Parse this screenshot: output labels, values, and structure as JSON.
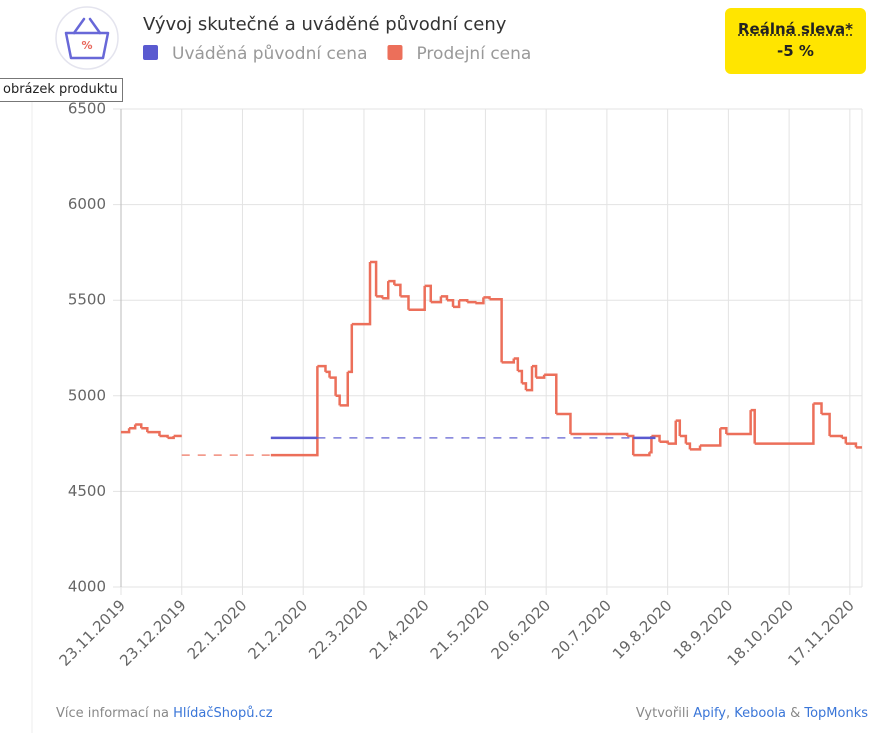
{
  "chart_data": {
    "type": "step-line",
    "title": "Vývoj skutečné a uváděné původní ceny",
    "series": [
      {
        "name": "Uváděná původní cena",
        "color": "#5a5ad0",
        "x": [
          "2020-02-05",
          "2020-02-28",
          null,
          "2020-08-02",
          "2020-08-13"
        ],
        "values": [
          4780,
          4780,
          null,
          4780,
          4780
        ]
      },
      {
        "name": "Prodejní cena",
        "color": "#ec6f5a",
        "x": [
          "2019-11-23",
          "2019-11-27",
          "2019-11-30",
          "2019-12-03",
          "2019-12-06",
          "2019-12-12",
          "2019-12-16",
          "2019-12-19",
          "2019-12-23",
          null,
          "2020-02-05",
          "2020-02-28",
          "2020-03-03",
          "2020-03-05",
          "2020-03-08",
          "2020-03-10",
          "2020-03-14",
          "2020-03-16",
          "2020-03-25",
          "2020-03-28",
          "2020-03-31",
          "2020-04-03",
          "2020-04-06",
          "2020-04-09",
          "2020-04-13",
          "2020-04-21",
          "2020-04-24",
          "2020-04-29",
          "2020-05-02",
          "2020-05-05",
          "2020-05-08",
          "2020-05-12",
          "2020-05-16",
          "2020-05-20",
          "2020-05-23",
          "2020-05-29",
          "2020-06-04",
          "2020-06-06",
          "2020-06-08",
          "2020-06-10",
          "2020-06-13",
          "2020-06-15",
          "2020-06-19",
          "2020-06-25",
          "2020-07-02",
          "2020-07-30",
          "2020-08-02",
          "2020-08-10",
          "2020-08-11",
          "2020-08-15",
          "2020-08-19",
          "2020-08-23",
          "2020-08-25",
          "2020-08-28",
          "2020-08-30",
          "2020-09-04",
          "2020-09-14",
          "2020-09-17",
          "2020-09-29",
          "2020-10-01",
          "2020-10-30",
          "2020-11-03",
          "2020-11-07",
          "2020-11-13",
          "2020-11-15",
          "2020-11-20",
          "2020-11-23"
        ],
        "values": [
          4810,
          4830,
          4850,
          4830,
          4810,
          4790,
          4780,
          4790,
          4790,
          null,
          4690,
          5155,
          5125,
          5095,
          5000,
          4950,
          5125,
          5375,
          5700,
          5520,
          5510,
          5600,
          5580,
          5520,
          5450,
          5575,
          5490,
          5520,
          5500,
          5465,
          5500,
          5490,
          5485,
          5515,
          5505,
          5175,
          5195,
          5130,
          5065,
          5030,
          5155,
          5095,
          5110,
          4905,
          4800,
          4790,
          4690,
          4705,
          4790,
          4760,
          4750,
          4870,
          4790,
          4750,
          4720,
          4740,
          4830,
          4800,
          4925,
          4750,
          4960,
          4905,
          4790,
          4780,
          4750,
          4730,
          4730
        ]
      }
    ],
    "xlim": [
      "2019-11-23",
      "2020-11-23"
    ],
    "xticks": [
      {
        "value": "2019-11-23",
        "label": "23.11.2019"
      },
      {
        "value": "2019-12-23",
        "label": "23.12.2019"
      },
      {
        "value": "2020-01-22",
        "label": "22.1.2020"
      },
      {
        "value": "2020-02-21",
        "label": "21.2.2020"
      },
      {
        "value": "2020-03-22",
        "label": "22.3.2020"
      },
      {
        "value": "2020-04-21",
        "label": "21.4.2020"
      },
      {
        "value": "2020-05-21",
        "label": "21.5.2020"
      },
      {
        "value": "2020-06-20",
        "label": "20.6.2020"
      },
      {
        "value": "2020-07-20",
        "label": "20.7.2020"
      },
      {
        "value": "2020-08-19",
        "label": "19.8.2020"
      },
      {
        "value": "2020-09-18",
        "label": "18.9.2020"
      },
      {
        "value": "2020-10-18",
        "label": "18.10.2020"
      },
      {
        "value": "2020-11-17",
        "label": "17.11.2020"
      }
    ],
    "ylim": [
      4000,
      6500
    ],
    "yticks": [
      4000,
      4500,
      5000,
      5500,
      6000,
      6500
    ],
    "grid": true
  },
  "badge": {
    "title": "Reálná sleva*",
    "value": "-5 %"
  },
  "tooltip": "obrázek produktu",
  "footer": {
    "text": "Více informací na",
    "link": "HlídačShopů.cz",
    "credit_prefix": "Vytvořili",
    "credits": [
      "Apify",
      "Keboola",
      "TopMonks"
    ],
    "credit_separators": [
      ",",
      "&"
    ]
  }
}
